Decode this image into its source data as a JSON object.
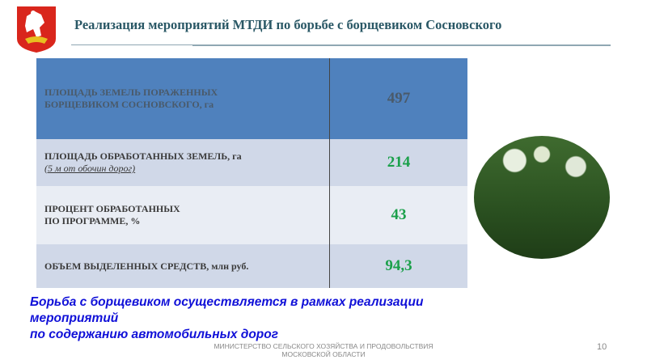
{
  "header": {
    "title": "Реализация мероприятий МТДИ по борьбе с борщевиком Сосновского",
    "logo": "moscow-oblast-coat-of-arms"
  },
  "table": {
    "rows": [
      {
        "label_line1": "ПЛОЩАДЬ ЗЕМЕЛЬ ПОРАЖЕННЫХ",
        "label_line2": "БОРЩЕВИКОМ СОСНОВСКОГО, га",
        "value": "497"
      },
      {
        "label_line1": "ПЛОЩАДЬ ОБРАБОТАННЫХ ЗЕМЕЛЬ, га",
        "label_line2": "(5 м от обочин дорог)",
        "value": "214"
      },
      {
        "label_line1": "ПРОЦЕНТ ОБРАБОТАННЫХ",
        "label_line2": "ПО ПРОГРАММЕ, %",
        "value": "43"
      },
      {
        "label_line1": "ОБЪЕМ ВЫДЕЛЕННЫХ СРЕДСТВ, млн руб.",
        "value": "94,3"
      }
    ]
  },
  "note": {
    "line1": "Борьба с борщевиком осуществляется в рамках реализации",
    "line2": "мероприятий",
    "line3": "по содержанию автомобильных дорог"
  },
  "footer": {
    "line1": "МИНИСТЕРСТВО СЕЛЬСКОГО ХОЗЯЙСТВА И ПРОДОВОЛЬСТВИЯ",
    "line2": "МОСКОВСКОЙ ОБЛАСТИ",
    "page_number": "10"
  },
  "colors": {
    "header_row": "#4f81bd",
    "value": "#1aa04a",
    "note": "#1010d8"
  }
}
